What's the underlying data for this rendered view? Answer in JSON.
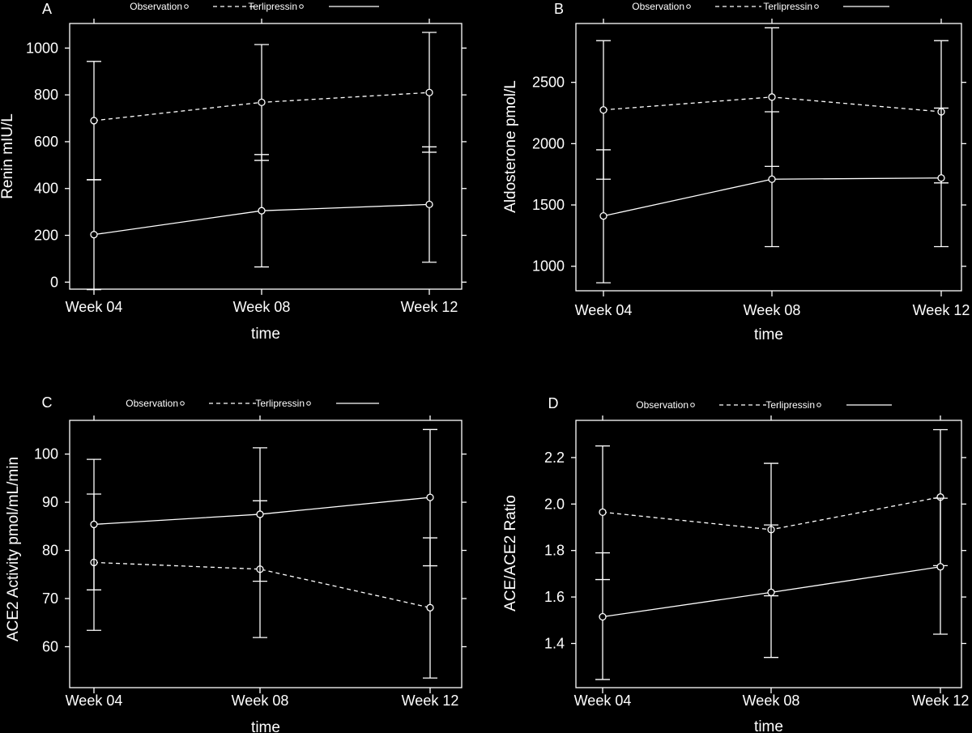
{
  "chart_data": [
    {
      "id": "A",
      "panel_label": "A",
      "type": "line",
      "xlabel": "time",
      "ylabel": "Renin mIU/L",
      "categories": [
        "Week 04",
        "Week 08",
        "Week 12"
      ],
      "ylim": [
        -30,
        1105
      ],
      "yticks": [
        0,
        200,
        400,
        600,
        800,
        1000
      ],
      "ytick_labels": [
        "0",
        "200",
        "400",
        "600",
        "800",
        "1000"
      ],
      "legend": [
        "Observation",
        "Terlipressin"
      ],
      "series": [
        {
          "name": "Observation",
          "style": "dashed",
          "values": [
            690,
            768,
            810
          ],
          "lower": [
            438,
            520,
            555
          ],
          "upper": [
            943,
            1015,
            1067
          ]
        },
        {
          "name": "Terlipressin",
          "style": "solid",
          "values": [
            203,
            305,
            332
          ],
          "lower": [
            -32,
            65,
            85
          ],
          "upper": [
            437,
            545,
            578
          ]
        }
      ]
    },
    {
      "id": "B",
      "panel_label": "B",
      "type": "line",
      "xlabel": "time",
      "ylabel": "Aldosterone pmol/L",
      "categories": [
        "Week 04",
        "Week 08",
        "Week 12"
      ],
      "ylim": [
        800,
        2980
      ],
      "yticks": [
        1000,
        1500,
        2000,
        2500
      ],
      "ytick_labels": [
        "1000",
        "1500",
        "2000",
        "2500"
      ],
      "legend": [
        "Observation",
        "Terlipressin"
      ],
      "series": [
        {
          "name": "Observation",
          "style": "dashed",
          "values": [
            2275,
            2380,
            2260
          ],
          "lower": [
            1710,
            1815,
            1680
          ],
          "upper": [
            2840,
            2945,
            2840
          ]
        },
        {
          "name": "Terlipressin",
          "style": "solid",
          "values": [
            1410,
            1710,
            1720
          ],
          "lower": [
            865,
            1160,
            1160
          ],
          "upper": [
            1950,
            2260,
            2290
          ]
        }
      ]
    },
    {
      "id": "C",
      "panel_label": "C",
      "type": "line",
      "xlabel": "time",
      "ylabel": "ACE2 Activity pmol/mL/min",
      "categories": [
        "Week 04",
        "Week 08",
        "Week 12"
      ],
      "ylim": [
        51.5,
        107
      ],
      "yticks": [
        60,
        70,
        80,
        90,
        100
      ],
      "ytick_labels": [
        "60",
        "70",
        "80",
        "90",
        "100"
      ],
      "legend": [
        "Observation",
        "Terlipressin"
      ],
      "series": [
        {
          "name": "Observation",
          "style": "dashed",
          "values": [
            77.5,
            76.1,
            68.1
          ],
          "lower": [
            63.4,
            61.9,
            53.5
          ],
          "upper": [
            91.7,
            90.3,
            82.6
          ]
        },
        {
          "name": "Terlipressin",
          "style": "solid",
          "values": [
            85.4,
            87.5,
            91.0
          ],
          "lower": [
            71.8,
            73.6,
            76.8
          ],
          "upper": [
            98.9,
            101.3,
            105.1
          ]
        }
      ]
    },
    {
      "id": "D",
      "panel_label": "D",
      "type": "line",
      "xlabel": "time",
      "ylabel": "ACE/ACE2 Ratio",
      "categories": [
        "Week 04",
        "Week 08",
        "Week 12"
      ],
      "ylim": [
        1.21,
        2.36
      ],
      "yticks": [
        1.4,
        1.6,
        1.8,
        2.0,
        2.2
      ],
      "ytick_labels": [
        "1.4",
        "1.6",
        "1.8",
        "2.0",
        "2.2"
      ],
      "legend": [
        "Observation",
        "Terlipressin"
      ],
      "series": [
        {
          "name": "Observation",
          "style": "dashed",
          "values": [
            1.965,
            1.89,
            2.03
          ],
          "lower": [
            1.675,
            1.605,
            1.735
          ],
          "upper": [
            2.25,
            2.175,
            2.32
          ]
        },
        {
          "name": "Terlipressin",
          "style": "solid",
          "values": [
            1.515,
            1.62,
            1.73
          ],
          "lower": [
            1.245,
            1.34,
            1.44
          ],
          "upper": [
            1.79,
            1.91,
            2.025
          ]
        }
      ]
    }
  ]
}
